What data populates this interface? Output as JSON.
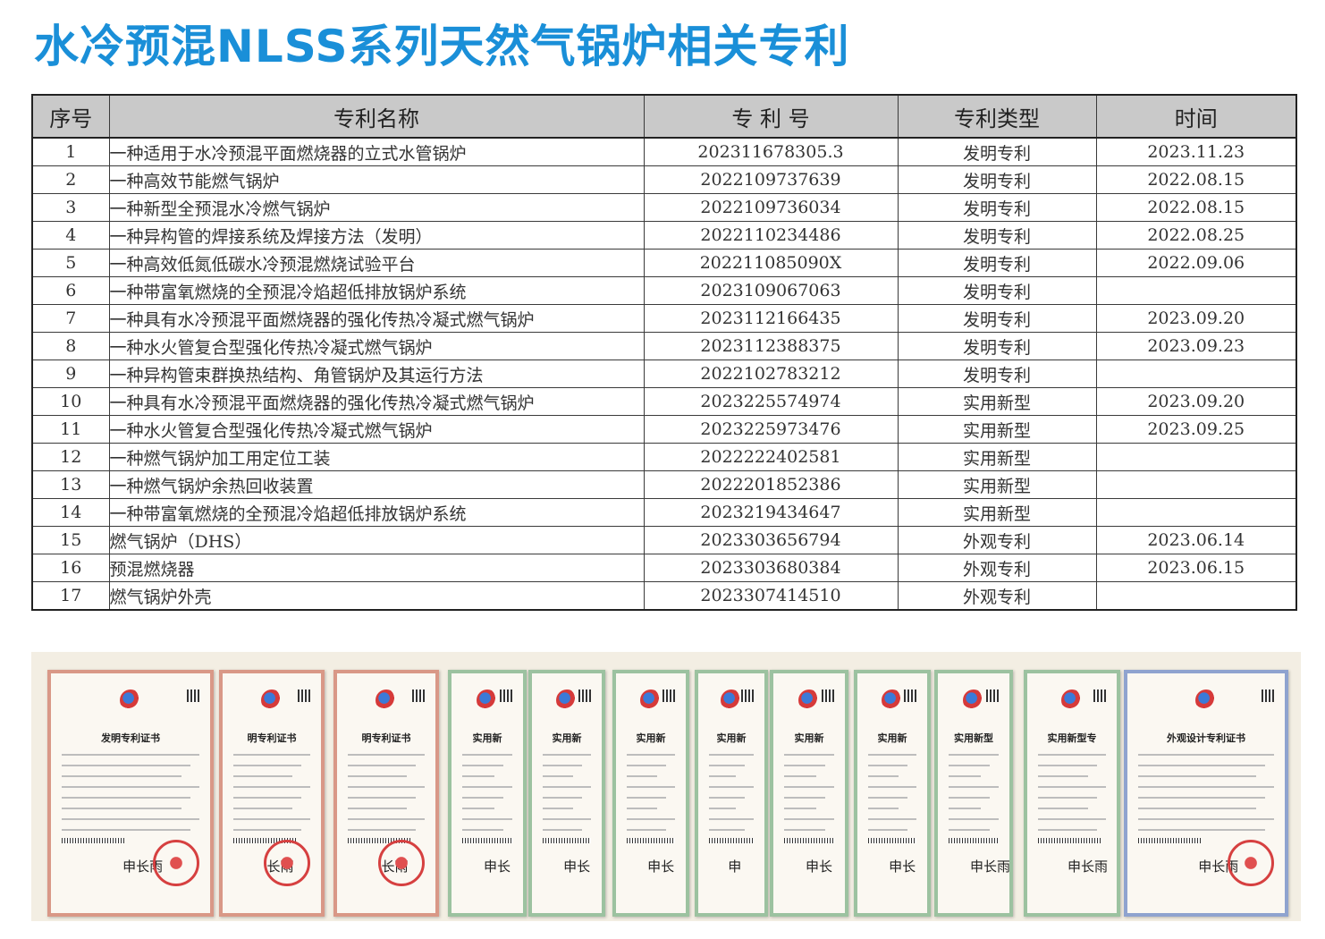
{
  "title": "水冷预混NLSS系列天然气锅炉相关专利",
  "table": {
    "headers": [
      "序号",
      "专利名称",
      "专 利 号",
      "专利类型",
      "时间"
    ],
    "rows": [
      {
        "idx": "1",
        "name": "一种适用于水冷预混平面燃烧器的立式水管锅炉",
        "number": "202311678305.3",
        "type": "发明专利",
        "date": "2023.11.23"
      },
      {
        "idx": "2",
        "name": "一种高效节能燃气锅炉",
        "number": "2022109737639",
        "type": "发明专利",
        "date": "2022.08.15"
      },
      {
        "idx": "3",
        "name": "一种新型全预混水冷燃气锅炉",
        "number": "2022109736034",
        "type": "发明专利",
        "date": "2022.08.15"
      },
      {
        "idx": "4",
        "name": "一种异构管的焊接系统及焊接方法（发明）",
        "number": "2022110234486",
        "type": "发明专利",
        "date": "2022.08.25"
      },
      {
        "idx": "5",
        "name": "一种高效低氮低碳水冷预混燃烧试验平台",
        "number": "202211085090X",
        "type": "发明专利",
        "date": "2022.09.06"
      },
      {
        "idx": "6",
        "name": "一种带富氧燃烧的全预混冷焰超低排放锅炉系统",
        "number": "2023109067063",
        "type": "发明专利",
        "date": ""
      },
      {
        "idx": "7",
        "name": "一种具有水冷预混平面燃烧器的强化传热冷凝式燃气锅炉",
        "number": "2023112166435",
        "type": "发明专利",
        "date": "2023.09.20"
      },
      {
        "idx": "8",
        "name": "一种水火管复合型强化传热冷凝式燃气锅炉",
        "number": "2023112388375",
        "type": "发明专利",
        "date": "2023.09.23"
      },
      {
        "idx": "9",
        "name": "一种异构管束群换热结构、角管锅炉及其运行方法",
        "number": "2022102783212",
        "type": "发明专利",
        "date": ""
      },
      {
        "idx": "10",
        "name": "一种具有水冷预混平面燃烧器的强化传热冷凝式燃气锅炉",
        "number": "2023225574974",
        "type": "实用新型",
        "date": "2023.09.20"
      },
      {
        "idx": "11",
        "name": "一种水火管复合型强化传热冷凝式燃气锅炉",
        "number": "2023225973476",
        "type": "实用新型",
        "date": "2023.09.25"
      },
      {
        "idx": "12",
        "name": "一种燃气锅炉加工用定位工装",
        "number": "2022222402581",
        "type": "实用新型",
        "date": ""
      },
      {
        "idx": "13",
        "name": "一种燃气锅炉余热回收装置",
        "number": "2022201852386",
        "type": "实用新型",
        "date": ""
      },
      {
        "idx": "14",
        "name": "一种带富氧燃烧的全预混冷焰超低排放锅炉系统",
        "number": "2023219434647",
        "type": "实用新型",
        "date": ""
      },
      {
        "idx": "15",
        "name": "燃气锅炉（DHS）",
        "number": "2023303656794",
        "type": "外观专利",
        "date": "2023.06.14"
      },
      {
        "idx": "16",
        "name": "预混燃烧器",
        "number": "2023303680384",
        "type": "外观专利",
        "date": "2023.06.15"
      },
      {
        "idx": "17",
        "name": "燃气锅炉外壳",
        "number": "2023307414510",
        "type": "外观专利",
        "date": ""
      }
    ]
  },
  "certificates": [
    {
      "kind": "invention",
      "title": "发明专利证书",
      "signature": "申长雨"
    },
    {
      "kind": "invention",
      "title": "明专利证书",
      "signature": "长雨"
    },
    {
      "kind": "invention",
      "title": "明专利证书",
      "signature": "长雨"
    },
    {
      "kind": "utility",
      "title": "实用新",
      "signature": "申长"
    },
    {
      "kind": "utility",
      "title": "实用新",
      "signature": "申长"
    },
    {
      "kind": "utility",
      "title": "实用新",
      "signature": "申长"
    },
    {
      "kind": "utility",
      "title": "实用新",
      "signature": "申"
    },
    {
      "kind": "utility",
      "title": "实用新",
      "signature": "申长"
    },
    {
      "kind": "utility",
      "title": "实用新",
      "signature": "申长"
    },
    {
      "kind": "utility",
      "title": "实用新型",
      "signature": "申长雨"
    },
    {
      "kind": "utility",
      "title": "实用新型专",
      "signature": "申长雨"
    },
    {
      "kind": "design",
      "title": "外观设计专利证书",
      "signature": "申长雨"
    }
  ]
}
